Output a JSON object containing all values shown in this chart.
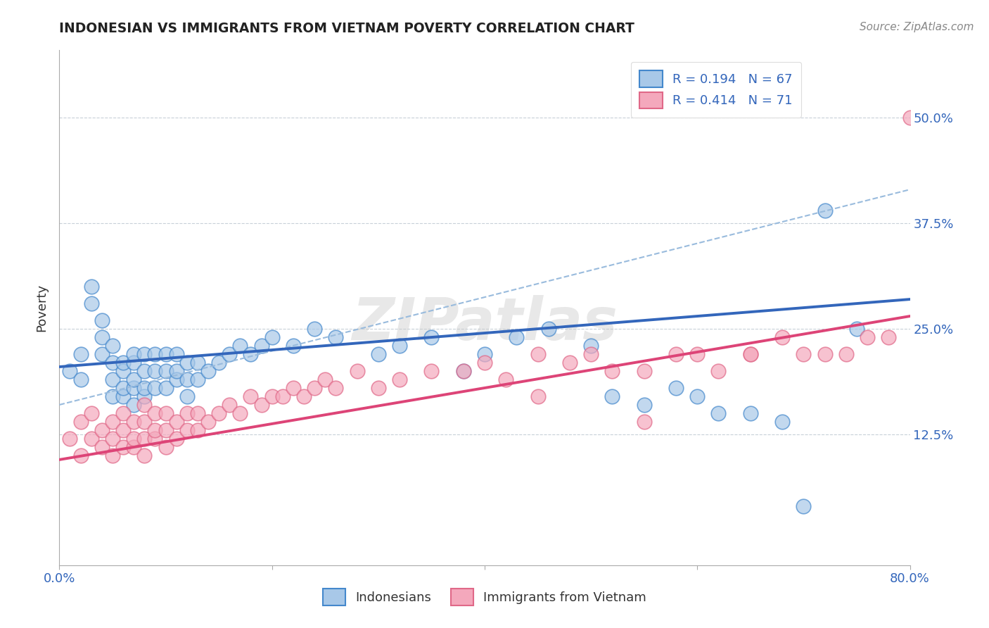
{
  "title": "INDONESIAN VS IMMIGRANTS FROM VIETNAM POVERTY CORRELATION CHART",
  "source": "Source: ZipAtlas.com",
  "ylabel": "Poverty",
  "ytick_labels": [
    "12.5%",
    "25.0%",
    "37.5%",
    "50.0%"
  ],
  "ytick_values": [
    0.125,
    0.25,
    0.375,
    0.5
  ],
  "xlim": [
    0.0,
    0.8
  ],
  "ylim": [
    -0.03,
    0.58
  ],
  "legend_r_blue": "R = 0.194",
  "legend_n_blue": "N = 67",
  "legend_r_pink": "R = 0.414",
  "legend_n_pink": "N = 71",
  "blue_fill": "#A8C8E8",
  "pink_fill": "#F4A8BC",
  "blue_edge": "#4488CC",
  "pink_edge": "#E06888",
  "blue_line": "#3366BB",
  "pink_line": "#DD4477",
  "dash_line": "#99BBDD",
  "watermark": "ZIPatlas",
  "indo_x": [
    0.01,
    0.02,
    0.02,
    0.03,
    0.03,
    0.04,
    0.04,
    0.04,
    0.05,
    0.05,
    0.05,
    0.05,
    0.06,
    0.06,
    0.06,
    0.06,
    0.07,
    0.07,
    0.07,
    0.07,
    0.07,
    0.08,
    0.08,
    0.08,
    0.08,
    0.09,
    0.09,
    0.09,
    0.1,
    0.1,
    0.1,
    0.11,
    0.11,
    0.11,
    0.12,
    0.12,
    0.12,
    0.13,
    0.13,
    0.14,
    0.15,
    0.16,
    0.17,
    0.18,
    0.19,
    0.2,
    0.22,
    0.24,
    0.26,
    0.3,
    0.32,
    0.35,
    0.38,
    0.4,
    0.43,
    0.46,
    0.5,
    0.52,
    0.55,
    0.58,
    0.6,
    0.62,
    0.65,
    0.68,
    0.7,
    0.72,
    0.75
  ],
  "indo_y": [
    0.2,
    0.19,
    0.22,
    0.28,
    0.3,
    0.22,
    0.24,
    0.26,
    0.17,
    0.19,
    0.21,
    0.23,
    0.17,
    0.18,
    0.2,
    0.21,
    0.16,
    0.18,
    0.19,
    0.21,
    0.22,
    0.17,
    0.18,
    0.2,
    0.22,
    0.18,
    0.2,
    0.22,
    0.18,
    0.2,
    0.22,
    0.19,
    0.2,
    0.22,
    0.17,
    0.19,
    0.21,
    0.19,
    0.21,
    0.2,
    0.21,
    0.22,
    0.23,
    0.22,
    0.23,
    0.24,
    0.23,
    0.25,
    0.24,
    0.22,
    0.23,
    0.24,
    0.2,
    0.22,
    0.24,
    0.25,
    0.23,
    0.17,
    0.16,
    0.18,
    0.17,
    0.15,
    0.15,
    0.14,
    0.04,
    0.39,
    0.25
  ],
  "viet_x": [
    0.01,
    0.02,
    0.02,
    0.03,
    0.03,
    0.04,
    0.04,
    0.05,
    0.05,
    0.05,
    0.06,
    0.06,
    0.06,
    0.07,
    0.07,
    0.07,
    0.08,
    0.08,
    0.08,
    0.08,
    0.09,
    0.09,
    0.09,
    0.1,
    0.1,
    0.1,
    0.11,
    0.11,
    0.12,
    0.12,
    0.13,
    0.13,
    0.14,
    0.15,
    0.16,
    0.17,
    0.18,
    0.19,
    0.2,
    0.21,
    0.22,
    0.23,
    0.24,
    0.25,
    0.26,
    0.28,
    0.3,
    0.32,
    0.35,
    0.38,
    0.4,
    0.42,
    0.45,
    0.48,
    0.5,
    0.52,
    0.55,
    0.58,
    0.6,
    0.62,
    0.65,
    0.68,
    0.7,
    0.72,
    0.74,
    0.76,
    0.78,
    0.8,
    0.65,
    0.45,
    0.55
  ],
  "viet_y": [
    0.12,
    0.1,
    0.14,
    0.12,
    0.15,
    0.11,
    0.13,
    0.1,
    0.12,
    0.14,
    0.11,
    0.13,
    0.15,
    0.11,
    0.12,
    0.14,
    0.1,
    0.12,
    0.14,
    0.16,
    0.12,
    0.13,
    0.15,
    0.11,
    0.13,
    0.15,
    0.12,
    0.14,
    0.13,
    0.15,
    0.13,
    0.15,
    0.14,
    0.15,
    0.16,
    0.15,
    0.17,
    0.16,
    0.17,
    0.17,
    0.18,
    0.17,
    0.18,
    0.19,
    0.18,
    0.2,
    0.18,
    0.19,
    0.2,
    0.2,
    0.21,
    0.19,
    0.22,
    0.21,
    0.22,
    0.2,
    0.2,
    0.22,
    0.22,
    0.2,
    0.22,
    0.24,
    0.22,
    0.22,
    0.22,
    0.24,
    0.24,
    0.5,
    0.22,
    0.17,
    0.14
  ]
}
